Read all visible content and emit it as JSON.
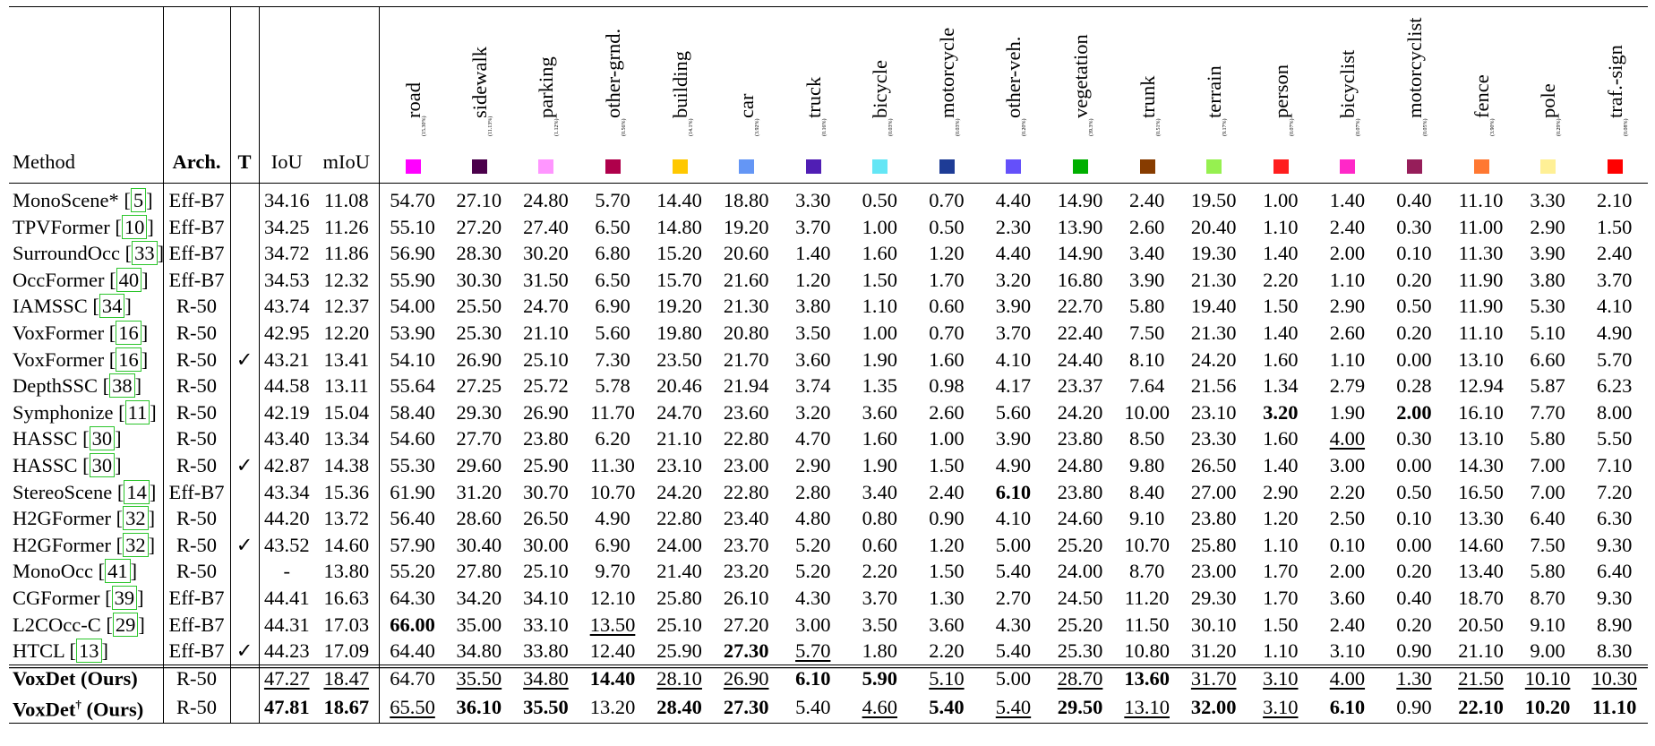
{
  "headers": {
    "method": "Method",
    "arch": "Arch.",
    "t": "T",
    "iou": "IoU",
    "miou": "mIoU"
  },
  "classes": [
    {
      "name": "road",
      "freq": "(15.30%)",
      "color": "#ff00ff"
    },
    {
      "name": "sidewalk",
      "freq": "(11.13%)",
      "color": "#4b004b"
    },
    {
      "name": "parking",
      "freq": "(1.12%)",
      "color": "#ff96ff"
    },
    {
      "name": "other-grnd.",
      "freq": "(0.56%)",
      "color": "#af004b"
    },
    {
      "name": "building",
      "freq": "(14.1%)",
      "color": "#ffc800"
    },
    {
      "name": "car",
      "freq": "(3.92%)",
      "color": "#6496f5"
    },
    {
      "name": "truck",
      "freq": "(0.16%)",
      "color": "#501eb4"
    },
    {
      "name": "bicycle",
      "freq": "(0.03%)",
      "color": "#64e6f5"
    },
    {
      "name": "motorcycle",
      "freq": "(0.03%)",
      "color": "#1e3c96"
    },
    {
      "name": "other-veh.",
      "freq": "(0.20%)",
      "color": "#6450fa"
    },
    {
      "name": "vegetation",
      "freq": "(39.3%)",
      "color": "#00af00"
    },
    {
      "name": "trunk",
      "freq": "(0.51%)",
      "color": "#873c00"
    },
    {
      "name": "terrain",
      "freq": "(9.17%)",
      "color": "#96f050"
    },
    {
      "name": "person",
      "freq": "(0.07%)",
      "color": "#ff1e1e"
    },
    {
      "name": "bicyclist",
      "freq": "(0.07%)",
      "color": "#ff28c8"
    },
    {
      "name": "motorcyclist",
      "freq": "(0.05%)",
      "color": "#961e5a"
    },
    {
      "name": "fence",
      "freq": "(3.90%)",
      "color": "#ff7832"
    },
    {
      "name": "pole",
      "freq": "(0.29%)",
      "color": "#fff096"
    },
    {
      "name": "traf.-sign",
      "freq": "(0.08%)",
      "color": "#ff0000"
    }
  ],
  "rows": [
    {
      "method": "MonoScene*",
      "cite": "5",
      "arch": "Eff-B7",
      "t": "",
      "iou": "34.16",
      "miou": "11.08",
      "vals": [
        "54.70",
        "27.10",
        "24.80",
        "5.70",
        "14.40",
        "18.80",
        "3.30",
        "0.50",
        "0.70",
        "4.40",
        "14.90",
        "2.40",
        "19.50",
        "1.00",
        "1.40",
        "0.40",
        "11.10",
        "3.30",
        "2.10"
      ],
      "bold": [],
      "ul": []
    },
    {
      "method": "TPVFormer",
      "cite": "10",
      "arch": "Eff-B7",
      "t": "",
      "iou": "34.25",
      "miou": "11.26",
      "vals": [
        "55.10",
        "27.20",
        "27.40",
        "6.50",
        "14.80",
        "19.20",
        "3.70",
        "1.00",
        "0.50",
        "2.30",
        "13.90",
        "2.60",
        "20.40",
        "1.10",
        "2.40",
        "0.30",
        "11.00",
        "2.90",
        "1.50"
      ],
      "bold": [],
      "ul": []
    },
    {
      "method": "SurroundOcc",
      "cite": "33",
      "arch": "Eff-B7",
      "t": "",
      "iou": "34.72",
      "miou": "11.86",
      "vals": [
        "56.90",
        "28.30",
        "30.20",
        "6.80",
        "15.20",
        "20.60",
        "1.40",
        "1.60",
        "1.20",
        "4.40",
        "14.90",
        "3.40",
        "19.30",
        "1.40",
        "2.00",
        "0.10",
        "11.30",
        "3.90",
        "2.40"
      ],
      "bold": [],
      "ul": []
    },
    {
      "method": "OccFormer",
      "cite": "40",
      "arch": "Eff-B7",
      "t": "",
      "iou": "34.53",
      "miou": "12.32",
      "vals": [
        "55.90",
        "30.30",
        "31.50",
        "6.50",
        "15.70",
        "21.60",
        "1.20",
        "1.50",
        "1.70",
        "3.20",
        "16.80",
        "3.90",
        "21.30",
        "2.20",
        "1.10",
        "0.20",
        "11.90",
        "3.80",
        "3.70"
      ],
      "bold": [],
      "ul": []
    },
    {
      "method": "IAMSSC",
      "cite": "34",
      "arch": "R-50",
      "t": "",
      "iou": "43.74",
      "miou": "12.37",
      "vals": [
        "54.00",
        "25.50",
        "24.70",
        "6.90",
        "19.20",
        "21.30",
        "3.80",
        "1.10",
        "0.60",
        "3.90",
        "22.70",
        "5.80",
        "19.40",
        "1.50",
        "2.90",
        "0.50",
        "11.90",
        "5.30",
        "4.10"
      ],
      "bold": [],
      "ul": []
    },
    {
      "method": "VoxFormer",
      "cite": "16",
      "arch": "R-50",
      "t": "",
      "iou": "42.95",
      "miou": "12.20",
      "vals": [
        "53.90",
        "25.30",
        "21.10",
        "5.60",
        "19.80",
        "20.80",
        "3.50",
        "1.00",
        "0.70",
        "3.70",
        "22.40",
        "7.50",
        "21.30",
        "1.40",
        "2.60",
        "0.20",
        "11.10",
        "5.10",
        "4.90"
      ],
      "bold": [],
      "ul": []
    },
    {
      "method": "VoxFormer",
      "cite": "16",
      "arch": "R-50",
      "t": "✓",
      "iou": "43.21",
      "miou": "13.41",
      "vals": [
        "54.10",
        "26.90",
        "25.10",
        "7.30",
        "23.50",
        "21.70",
        "3.60",
        "1.90",
        "1.60",
        "4.10",
        "24.40",
        "8.10",
        "24.20",
        "1.60",
        "1.10",
        "0.00",
        "13.10",
        "6.60",
        "5.70"
      ],
      "bold": [],
      "ul": []
    },
    {
      "method": "DepthSSC",
      "cite": "38",
      "arch": "R-50",
      "t": "",
      "iou": "44.58",
      "miou": "13.11",
      "vals": [
        "55.64",
        "27.25",
        "25.72",
        "5.78",
        "20.46",
        "21.94",
        "3.74",
        "1.35",
        "0.98",
        "4.17",
        "23.37",
        "7.64",
        "21.56",
        "1.34",
        "2.79",
        "0.28",
        "12.94",
        "5.87",
        "6.23"
      ],
      "bold": [],
      "ul": []
    },
    {
      "method": "Symphonize",
      "cite": "11",
      "arch": "R-50",
      "t": "",
      "iou": "42.19",
      "miou": "15.04",
      "vals": [
        "58.40",
        "29.30",
        "26.90",
        "11.70",
        "24.70",
        "23.60",
        "3.20",
        "3.60",
        "2.60",
        "5.60",
        "24.20",
        "10.00",
        "23.10",
        "3.20",
        "1.90",
        "2.00",
        "16.10",
        "7.70",
        "8.00"
      ],
      "bold": [
        13,
        15
      ],
      "ul": []
    },
    {
      "method": "HASSC",
      "cite": "30",
      "arch": "R-50",
      "t": "",
      "iou": "43.40",
      "miou": "13.34",
      "vals": [
        "54.60",
        "27.70",
        "23.80",
        "6.20",
        "21.10",
        "22.80",
        "4.70",
        "1.60",
        "1.00",
        "3.90",
        "23.80",
        "8.50",
        "23.30",
        "1.60",
        "4.00",
        "0.30",
        "13.10",
        "5.80",
        "5.50"
      ],
      "bold": [],
      "ul": [
        14
      ]
    },
    {
      "method": "HASSC",
      "cite": "30",
      "arch": "R-50",
      "t": "✓",
      "iou": "42.87",
      "miou": "14.38",
      "vals": [
        "55.30",
        "29.60",
        "25.90",
        "11.30",
        "23.10",
        "23.00",
        "2.90",
        "1.90",
        "1.50",
        "4.90",
        "24.80",
        "9.80",
        "26.50",
        "1.40",
        "3.00",
        "0.00",
        "14.30",
        "7.00",
        "7.10"
      ],
      "bold": [],
      "ul": []
    },
    {
      "method": "StereoScene",
      "cite": "14",
      "arch": "Eff-B7",
      "t": "",
      "iou": "43.34",
      "miou": "15.36",
      "vals": [
        "61.90",
        "31.20",
        "30.70",
        "10.70",
        "24.20",
        "22.80",
        "2.80",
        "3.40",
        "2.40",
        "6.10",
        "23.80",
        "8.40",
        "27.00",
        "2.90",
        "2.20",
        "0.50",
        "16.50",
        "7.00",
        "7.20"
      ],
      "bold": [
        9
      ],
      "ul": []
    },
    {
      "method": "H2GFormer",
      "cite": "32",
      "arch": "R-50",
      "t": "",
      "iou": "44.20",
      "miou": "13.72",
      "vals": [
        "56.40",
        "28.60",
        "26.50",
        "4.90",
        "22.80",
        "23.40",
        "4.80",
        "0.80",
        "0.90",
        "4.10",
        "24.60",
        "9.10",
        "23.80",
        "1.20",
        "2.50",
        "0.10",
        "13.30",
        "6.40",
        "6.30"
      ],
      "bold": [],
      "ul": []
    },
    {
      "method": "H2GFormer",
      "cite": "32",
      "arch": "R-50",
      "t": "✓",
      "iou": "43.52",
      "miou": "14.60",
      "vals": [
        "57.90",
        "30.40",
        "30.00",
        "6.90",
        "24.00",
        "23.70",
        "5.20",
        "0.60",
        "1.20",
        "5.00",
        "25.20",
        "10.70",
        "25.80",
        "1.10",
        "0.10",
        "0.00",
        "14.60",
        "7.50",
        "9.30"
      ],
      "bold": [],
      "ul": []
    },
    {
      "method": "MonoOcc",
      "cite": "41",
      "arch": "R-50",
      "t": "",
      "iou": "-",
      "miou": "13.80",
      "vals": [
        "55.20",
        "27.80",
        "25.10",
        "9.70",
        "21.40",
        "23.20",
        "5.20",
        "2.20",
        "1.50",
        "5.40",
        "24.00",
        "8.70",
        "23.00",
        "1.70",
        "2.00",
        "0.20",
        "13.40",
        "5.80",
        "6.40"
      ],
      "bold": [],
      "ul": []
    },
    {
      "method": "CGFormer",
      "cite": "39",
      "arch": "Eff-B7",
      "t": "",
      "iou": "44.41",
      "miou": "16.63",
      "vals": [
        "64.30",
        "34.20",
        "34.10",
        "12.10",
        "25.80",
        "26.10",
        "4.30",
        "3.70",
        "1.30",
        "2.70",
        "24.50",
        "11.20",
        "29.30",
        "1.70",
        "3.60",
        "0.40",
        "18.70",
        "8.70",
        "9.30"
      ],
      "bold": [],
      "ul": []
    },
    {
      "method": "L2COcc-C",
      "cite": "29",
      "arch": "Eff-B7",
      "t": "",
      "iou": "44.31",
      "miou": "17.03",
      "vals": [
        "66.00",
        "35.00",
        "33.10",
        "13.50",
        "25.10",
        "27.20",
        "3.00",
        "3.50",
        "3.60",
        "4.30",
        "25.20",
        "11.50",
        "30.10",
        "1.50",
        "2.40",
        "0.20",
        "20.50",
        "9.10",
        "8.90"
      ],
      "bold": [
        0
      ],
      "ul": [
        3
      ]
    },
    {
      "method": "HTCL",
      "cite": "13",
      "arch": "Eff-B7",
      "t": "✓",
      "iou": "44.23",
      "miou": "17.09",
      "vals": [
        "64.40",
        "34.80",
        "33.80",
        "12.40",
        "25.90",
        "27.30",
        "5.70",
        "1.80",
        "2.20",
        "5.40",
        "25.30",
        "10.80",
        "31.20",
        "1.10",
        "3.10",
        "0.90",
        "21.10",
        "9.00",
        "8.30"
      ],
      "bold": [
        5
      ],
      "ul": [
        6
      ]
    }
  ],
  "ours": [
    {
      "method": "VoxDet",
      "sup": "",
      "suffix": " (Ours)",
      "arch": "R-50",
      "t": "",
      "iou": "47.27",
      "miou": "18.47",
      "iou_style": "ul",
      "miou_style": "ul",
      "vals": [
        "64.70",
        "35.50",
        "34.80",
        "14.40",
        "28.10",
        "26.90",
        "6.10",
        "5.90",
        "5.10",
        "5.00",
        "28.70",
        "13.60",
        "31.70",
        "3.10",
        "4.00",
        "1.30",
        "21.50",
        "10.10",
        "10.30"
      ],
      "bold": [
        3,
        6,
        7,
        11
      ],
      "ul": [
        1,
        2,
        4,
        5,
        8,
        10,
        12,
        13,
        14,
        15,
        16,
        17,
        18
      ]
    },
    {
      "method": "VoxDet",
      "sup": "†",
      "suffix": " (Ours)",
      "arch": "R-50",
      "t": "",
      "iou": "47.81",
      "miou": "18.67",
      "iou_style": "bold",
      "miou_style": "bold",
      "vals": [
        "65.50",
        "36.10",
        "35.50",
        "13.20",
        "28.40",
        "27.30",
        "5.40",
        "4.60",
        "5.40",
        "5.40",
        "29.50",
        "13.10",
        "32.00",
        "3.10",
        "6.10",
        "0.90",
        "22.10",
        "10.20",
        "11.10"
      ],
      "bold": [
        1,
        2,
        4,
        5,
        8,
        10,
        12,
        14,
        16,
        17,
        18
      ],
      "ul": [
        0,
        7,
        9,
        11,
        13
      ]
    }
  ]
}
